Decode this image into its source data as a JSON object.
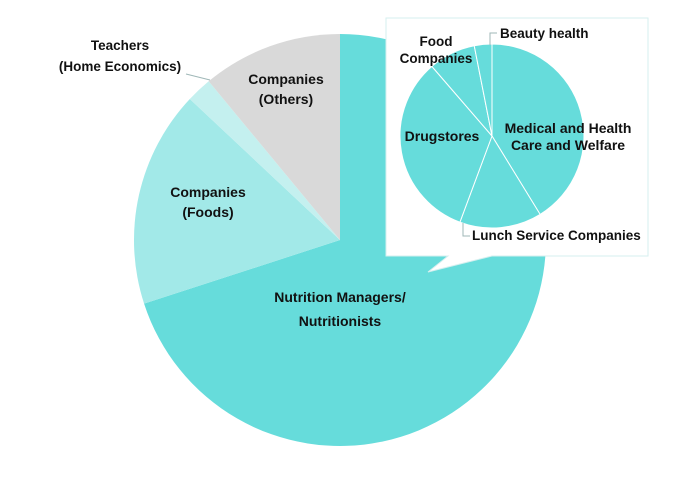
{
  "chart_data": [
    {
      "type": "pie",
      "title": "",
      "unit": "%",
      "start_angle_deg": 0,
      "direction": "clockwise",
      "slices": [
        {
          "label": "Nutrition Managers/ Nutritionists",
          "lines": [
            "Nutrition Managers/",
            "Nutritionists"
          ],
          "value": 70,
          "color": "#66dcdb"
        },
        {
          "label": "Companies (Foods)",
          "lines": [
            "Companies",
            "(Foods)"
          ],
          "value": 17,
          "color": "#a2e9e8"
        },
        {
          "label": "Teachers (Home Economics)",
          "lines": [
            "Teachers",
            "(Home Economics)"
          ],
          "value": 2,
          "color": "#c4f0ef"
        },
        {
          "label": "Companies (Others)",
          "lines": [
            "Companies",
            "(Others)"
          ],
          "value": 11,
          "color": "#d9d9d9"
        }
      ]
    },
    {
      "type": "pie",
      "title": "",
      "unit": "%",
      "start_angle_deg": 0,
      "direction": "clockwise",
      "breakdown_of": "Nutrition Managers/ Nutritionists",
      "slice_color": "#66dcdb",
      "slice_edge_color": "#ffffff",
      "slices": [
        {
          "label": "Medical and Health Care and Welfare",
          "lines": [
            "Medical and Health",
            "Care and Welfare"
          ],
          "value": 40
        },
        {
          "label": "Lunch Service Companies",
          "lines": [
            "Lunch Service Companies"
          ],
          "value": 14
        },
        {
          "label": "Drugstores",
          "lines": [
            "Drugstores"
          ],
          "value": 32
        },
        {
          "label": "Food Companies",
          "lines": [
            "Food",
            "Companies"
          ],
          "value": 8
        },
        {
          "label": "Beauty health",
          "lines": [
            "Beauty health"
          ],
          "value": 3
        }
      ]
    }
  ]
}
